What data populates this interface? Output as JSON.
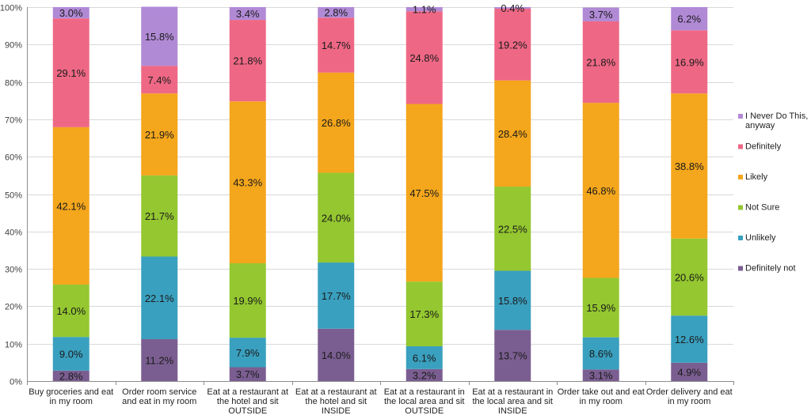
{
  "chart_data": {
    "type": "bar",
    "stacked": "percent",
    "title": "",
    "xlabel": "",
    "ylabel": "",
    "ylim": [
      0,
      100
    ],
    "y_ticks": [
      "0%",
      "10%",
      "20%",
      "30%",
      "40%",
      "50%",
      "60%",
      "70%",
      "80%",
      "90%",
      "100%"
    ],
    "grid": true,
    "legend_position": "right",
    "categories": [
      [
        "Buy groceries and eat",
        "in my room"
      ],
      [
        "Order room service",
        "and eat in my room"
      ],
      [
        "Eat at a restaurant at",
        "the hotel and sit",
        "OUTSIDE"
      ],
      [
        "Eat at a restaurant at",
        "the hotel and sit",
        "INSIDE"
      ],
      [
        "Eat at a restaurant in",
        "the local area and sit",
        "OUTSIDE"
      ],
      [
        "Eat at a restaurant in",
        "the local area and sit",
        "INSIDE"
      ],
      [
        "Order take out and eat",
        "in my room"
      ],
      [
        "Order delivery and eat",
        "in my room"
      ]
    ],
    "series": [
      {
        "name": "Definitely not",
        "color": "#7b5e91",
        "values": [
          2.8,
          11.2,
          3.7,
          14.0,
          3.2,
          13.7,
          3.1,
          4.9
        ],
        "labels": [
          "2.8%",
          "11.2%",
          "3.7%",
          "14.0%",
          "3.2%",
          "13.7%",
          "3.1%",
          "4.9%"
        ]
      },
      {
        "name": "Unlikely",
        "color": "#3aa0bf",
        "values": [
          9.0,
          22.1,
          7.9,
          17.7,
          6.1,
          15.8,
          8.6,
          12.6
        ],
        "labels": [
          "9.0%",
          "22.1%",
          "7.9%",
          "17.7%",
          "6.1%",
          "15.8%",
          "8.6%",
          "12.6%"
        ]
      },
      {
        "name": "Not Sure",
        "color": "#94c730",
        "values": [
          14.0,
          21.7,
          19.9,
          24.0,
          17.3,
          22.5,
          15.9,
          20.6
        ],
        "labels": [
          "14.0%",
          "21.7%",
          "19.9%",
          "24.0%",
          "17.3%",
          "22.5%",
          "15.9%",
          "20.6%"
        ]
      },
      {
        "name": "Likely",
        "color": "#f4a61c",
        "values": [
          42.1,
          21.9,
          43.3,
          26.8,
          47.5,
          28.4,
          46.8,
          38.8
        ],
        "labels": [
          "42.1%",
          "21.9%",
          "43.3%",
          "26.8%",
          "47.5%",
          "28.4%",
          "46.8%",
          "38.8%"
        ]
      },
      {
        "name": "Definitely",
        "color": "#ee6885",
        "values": [
          29.1,
          7.4,
          21.8,
          14.7,
          24.8,
          19.2,
          21.8,
          16.9
        ],
        "labels": [
          "29.1%",
          "7.4%",
          "21.8%",
          "14.7%",
          "24.8%",
          "19.2%",
          "21.8%",
          "16.9%"
        ]
      },
      {
        "name": "I Never Do This, anyway",
        "legend_lines": [
          "I Never Do This,",
          "anyway"
        ],
        "color": "#b18ad6",
        "values": [
          3.0,
          15.8,
          3.4,
          2.8,
          1.1,
          0.4,
          3.7,
          6.2
        ],
        "labels": [
          "3.0%",
          "15.8%",
          "3.4%",
          "2.8%",
          "1.1%",
          "0.4%",
          "3.7%",
          "6.2%"
        ]
      }
    ]
  }
}
